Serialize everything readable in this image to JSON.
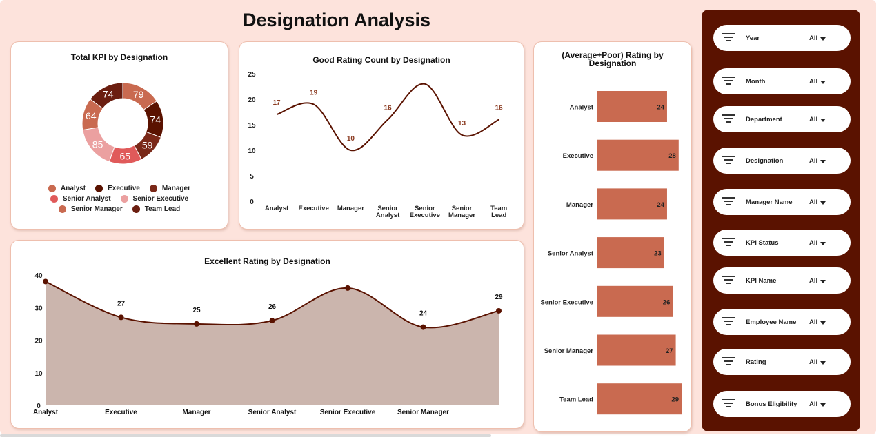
{
  "page": {
    "title": "Designation Analysis"
  },
  "chart_data": [
    {
      "type": "pie",
      "title": "Total KPI by Designation",
      "categories": [
        "Analyst",
        "Executive",
        "Manager",
        "Senior Analyst",
        "Senior Executive",
        "Senior Manager",
        "Team Lead"
      ],
      "values": [
        79,
        74,
        59,
        65,
        85,
        64,
        74
      ],
      "colors": [
        "#c96a50",
        "#5a1200",
        "#7a2818",
        "#e05a5a",
        "#eba0a0",
        "#c96a50",
        "#6b1e10"
      ],
      "legend": "bottom"
    },
    {
      "type": "line",
      "title": "Good Rating Count by Designation",
      "categories": [
        "Analyst",
        "Executive",
        "Manager",
        "Senior Analyst",
        "Senior Executive",
        "Senior Manager",
        "Team Lead"
      ],
      "values": [
        17,
        19,
        10,
        16,
        23,
        13,
        16
      ],
      "labels": [
        "17",
        "19",
        "10",
        "16",
        "",
        "13",
        "16"
      ],
      "ylim": [
        0,
        25
      ],
      "yticks": [
        "0",
        "5",
        "10",
        "15",
        "20",
        "25"
      ]
    },
    {
      "type": "bar",
      "orientation": "horizontal",
      "title": "(Average+Poor) Rating by Designation",
      "categories": [
        "Analyst",
        "Executive",
        "Manager",
        "Senior Analyst",
        "Senior Executive",
        "Senior Manager",
        "Team Lead"
      ],
      "values": [
        24,
        28,
        24,
        23,
        26,
        27,
        29
      ],
      "labels": [
        "24",
        "28",
        "24",
        "23",
        "26",
        "27",
        "29"
      ],
      "xlim": [
        0,
        29
      ]
    },
    {
      "type": "area",
      "title": "Excellent Rating by Designation",
      "categories": [
        "Analyst",
        "Executive",
        "Manager",
        "Senior Analyst",
        "Senior Executive",
        "Senior Manager",
        ""
      ],
      "values": [
        38,
        27,
        25,
        26,
        36,
        24,
        29
      ],
      "labels": [
        "",
        "27",
        "25",
        "26",
        "",
        "24",
        "29"
      ],
      "ylim": [
        0,
        40
      ],
      "yticks": [
        "0",
        "10",
        "20",
        "30",
        "40"
      ]
    }
  ],
  "filters": [
    {
      "label": "Year",
      "value": "All",
      "icon": "filter-icon"
    },
    {
      "label": "Month",
      "value": "All",
      "icon": "filter-icon"
    },
    {
      "label": "Department",
      "value": "All",
      "icon": "filter-icon"
    },
    {
      "label": "Designation",
      "value": "All",
      "icon": "filter-icon"
    },
    {
      "label": "Manager Name",
      "value": "All",
      "icon": "filter-icon"
    },
    {
      "label": "KPI Status",
      "value": "All",
      "icon": "filter-icon"
    },
    {
      "label": "KPI Name",
      "value": "All",
      "icon": "filter-icon"
    },
    {
      "label": "Employee Name",
      "value": "All",
      "icon": "filter-icon"
    },
    {
      "label": "Rating",
      "value": "All",
      "icon": "filter-icon"
    },
    {
      "label": "Bonus Eligibility",
      "value": "All",
      "icon": "filter-icon"
    }
  ]
}
